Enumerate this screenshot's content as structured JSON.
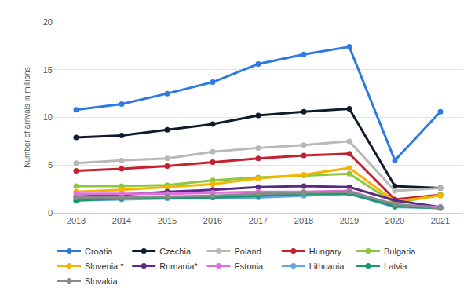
{
  "chart_data": {
    "type": "line",
    "y_label": "Number of arrivals in millions",
    "categories": [
      "2013",
      "2014",
      "2015",
      "2016",
      "2017",
      "2018",
      "2019",
      "2020",
      "2021"
    ],
    "ylim": [
      0,
      20
    ],
    "yticks": [
      0,
      5,
      10,
      15,
      20
    ],
    "grid": true,
    "legend": "bottom",
    "marker": "circle",
    "series": [
      {
        "name": "Croatia",
        "color": "#2f7ae0",
        "values": [
          10.8,
          11.4,
          12.5,
          13.7,
          15.6,
          16.6,
          17.4,
          5.5,
          10.6
        ]
      },
      {
        "name": "Czechia",
        "color": "#0f1c2e",
        "values": [
          7.9,
          8.1,
          8.7,
          9.3,
          10.2,
          10.6,
          10.9,
          2.8,
          2.6
        ]
      },
      {
        "name": "Poland",
        "color": "#b8b8b8",
        "values": [
          5.2,
          5.5,
          5.7,
          6.4,
          6.8,
          7.1,
          7.5,
          2.3,
          2.6
        ]
      },
      {
        "name": "Hungary",
        "color": "#c4202e",
        "values": [
          4.4,
          4.6,
          4.9,
          5.3,
          5.7,
          6.0,
          6.2,
          1.4,
          1.9
        ]
      },
      {
        "name": "Bulgaria",
        "color": "#8dc63f",
        "values": [
          2.8,
          2.8,
          2.9,
          3.4,
          3.7,
          3.9,
          4.1,
          1.0,
          1.9
        ]
      },
      {
        "name": "Slovenia *",
        "color": "#f5b400",
        "values": [
          2.2,
          2.4,
          2.7,
          3.0,
          3.6,
          4.0,
          4.7,
          1.2,
          1.8
        ]
      },
      {
        "name": "Romania*",
        "color": "#5b2a86",
        "values": [
          1.7,
          1.9,
          2.2,
          2.4,
          2.7,
          2.8,
          2.7,
          1.3,
          0.6
        ]
      },
      {
        "name": "Estonia",
        "color": "#e070e0",
        "values": [
          2.0,
          2.0,
          2.0,
          2.1,
          2.2,
          2.2,
          2.3,
          0.8,
          0.6
        ]
      },
      {
        "name": "Lithuania",
        "color": "#5fa8ea",
        "values": [
          1.3,
          1.4,
          1.5,
          1.6,
          1.6,
          1.8,
          2.0,
          0.6,
          0.5
        ]
      },
      {
        "name": "Latvia",
        "color": "#16996b",
        "values": [
          1.3,
          1.5,
          1.6,
          1.6,
          1.8,
          2.0,
          2.0,
          0.7,
          0.5
        ]
      },
      {
        "name": "Slovakia",
        "color": "#8a8a8a",
        "values": [
          1.6,
          1.6,
          1.7,
          1.8,
          2.0,
          2.1,
          2.2,
          0.9,
          0.5
        ]
      }
    ]
  }
}
